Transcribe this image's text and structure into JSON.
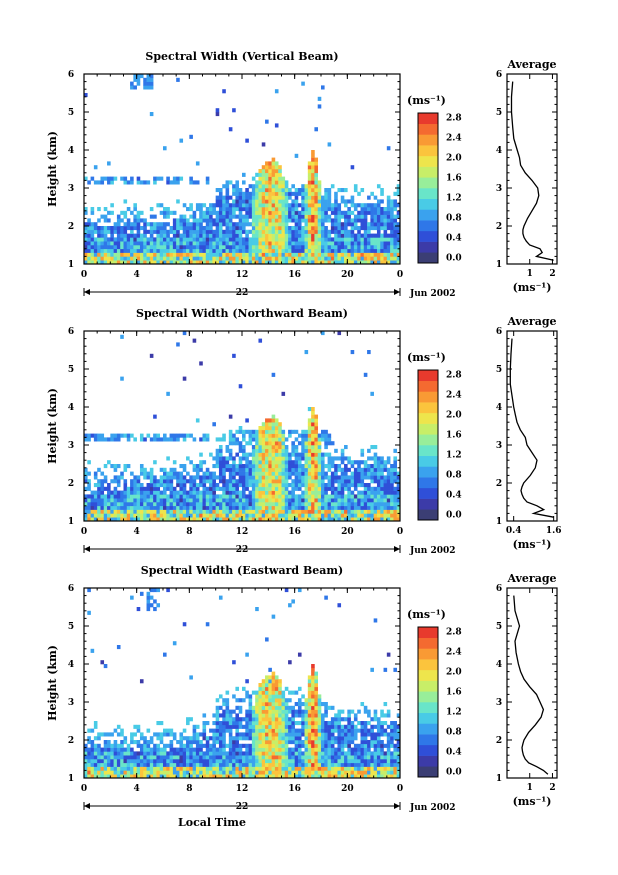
{
  "figure": {
    "x_axis_title": "Local Time",
    "day_label": "22",
    "month_label": "Jun 2002",
    "y_axis_title": "Height (km)",
    "colorbar_unit": "(ms⁻¹)",
    "avg_title": "Average",
    "avg_unit": "(ms⁻¹)",
    "colors": {
      "colormap": [
        "#3b3e74",
        "#3c3ba8",
        "#2f4fd8",
        "#2f77e8",
        "#3aa2ee",
        "#49cbe6",
        "#69e5c9",
        "#98ee9a",
        "#c8ee68",
        "#eee54c",
        "#fbc43d",
        "#f99a34",
        "#f46a30",
        "#e83a2d"
      ]
    }
  },
  "chart_data": [
    {
      "type": "heatmap",
      "title": "Spectral Width (Vertical Beam)",
      "ylabel": "Height (km)",
      "xticks": [
        "0",
        "4",
        "8",
        "12",
        "16",
        "20",
        "0"
      ],
      "yticks": [
        "1",
        "2",
        "3",
        "4",
        "5",
        "6"
      ],
      "xlim": [
        0,
        24
      ],
      "ylim": [
        1,
        6
      ],
      "colorbar": {
        "ticks": [
          "0.0",
          "0.4",
          "0.8",
          "1.2",
          "1.6",
          "2.0",
          "2.4",
          "2.8"
        ],
        "range": [
          0,
          3.0
        ]
      },
      "average_profile": {
        "xticks": [
          "1",
          "2"
        ],
        "xlim": [
          0,
          2.2
        ],
        "height": [
          1.1,
          1.2,
          1.3,
          1.4,
          1.5,
          1.6,
          1.7,
          1.8,
          1.9,
          2.0,
          2.2,
          2.4,
          2.6,
          2.8,
          3.0,
          3.2,
          3.4,
          3.6,
          3.8,
          4.0,
          4.3,
          4.6,
          5.0,
          5.4,
          5.8
        ],
        "value": [
          2.05,
          1.3,
          1.55,
          1.45,
          1.0,
          0.85,
          0.75,
          0.7,
          0.7,
          0.75,
          0.9,
          1.1,
          1.3,
          1.4,
          1.35,
          1.1,
          0.8,
          0.6,
          0.55,
          0.45,
          0.3,
          0.25,
          0.2,
          0.2,
          0.25
        ]
      }
    },
    {
      "type": "heatmap",
      "title": "Spectral Width (Northward Beam)",
      "ylabel": "Height (km)",
      "xticks": [
        "0",
        "4",
        "8",
        "12",
        "16",
        "20",
        "0"
      ],
      "yticks": [
        "1",
        "2",
        "3",
        "4",
        "5",
        "6"
      ],
      "xlim": [
        0,
        24
      ],
      "ylim": [
        1,
        6
      ],
      "colorbar": {
        "ticks": [
          "0.0",
          "0.4",
          "0.8",
          "1.2",
          "1.6",
          "2.0",
          "2.4",
          "2.8"
        ],
        "range": [
          0,
          3.0
        ]
      },
      "average_profile": {
        "xticks": [
          "0.4",
          "1.6"
        ],
        "xlim": [
          0.2,
          1.7
        ],
        "height": [
          1.1,
          1.2,
          1.3,
          1.4,
          1.5,
          1.6,
          1.7,
          1.8,
          1.9,
          2.0,
          2.2,
          2.4,
          2.6,
          2.8,
          3.0,
          3.2,
          3.4,
          3.6,
          3.8,
          4.0,
          4.3,
          4.6,
          5.0,
          5.4,
          5.8
        ],
        "value": [
          1.6,
          1.0,
          1.3,
          1.1,
          0.8,
          0.7,
          0.65,
          0.62,
          0.65,
          0.7,
          0.9,
          1.05,
          1.1,
          0.95,
          0.8,
          0.75,
          0.6,
          0.5,
          0.45,
          0.4,
          0.35,
          0.3,
          0.3,
          0.32,
          0.35
        ]
      }
    },
    {
      "type": "heatmap",
      "title": "Spectral Width (Eastward Beam)",
      "ylabel": "Height (km)",
      "xticks": [
        "0",
        "4",
        "8",
        "12",
        "16",
        "20",
        "0"
      ],
      "yticks": [
        "1",
        "2",
        "3",
        "4",
        "5",
        "6"
      ],
      "xlim": [
        0,
        24
      ],
      "ylim": [
        1,
        6
      ],
      "colorbar": {
        "ticks": [
          "0.0",
          "0.4",
          "0.8",
          "1.2",
          "1.6",
          "2.0",
          "2.4",
          "2.8"
        ],
        "range": [
          0,
          3.0
        ]
      },
      "average_profile": {
        "xticks": [
          "1",
          "2"
        ],
        "xlim": [
          0,
          2.2
        ],
        "height": [
          1.1,
          1.2,
          1.3,
          1.4,
          1.5,
          1.6,
          1.7,
          1.8,
          1.9,
          2.0,
          2.2,
          2.4,
          2.6,
          2.8,
          3.0,
          3.2,
          3.4,
          3.6,
          3.8,
          4.0,
          4.3,
          4.6,
          5.0,
          5.4,
          5.8
        ],
        "value": [
          1.8,
          1.6,
          1.3,
          0.95,
          0.8,
          0.72,
          0.68,
          0.66,
          0.7,
          0.75,
          0.95,
          1.25,
          1.5,
          1.6,
          1.45,
          1.3,
          1.0,
          0.75,
          0.6,
          0.5,
          0.4,
          0.35,
          0.55,
          0.35,
          0.3
        ]
      }
    }
  ]
}
